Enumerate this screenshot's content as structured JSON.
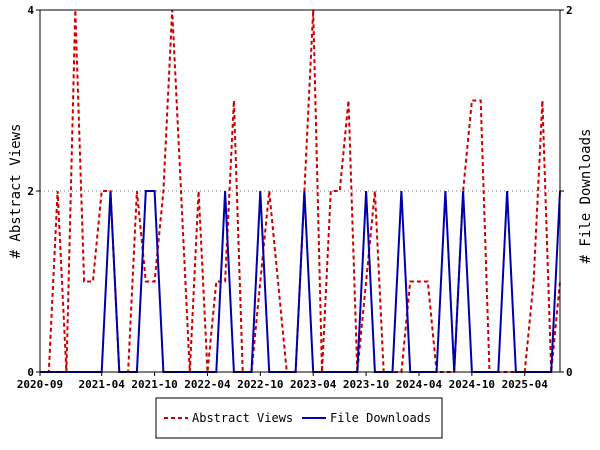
{
  "chart_data": {
    "type": "line",
    "x_tick_labels": [
      "2020-09",
      "2021-04",
      "2021-10",
      "2022-04",
      "2022-10",
      "2023-04",
      "2023-10",
      "2024-04",
      "2024-10",
      "2025-04"
    ],
    "y_left": {
      "label": "# Abstract Views",
      "ticks": [
        "0",
        "2",
        "4"
      ],
      "lim": [
        0,
        4
      ]
    },
    "y_right": {
      "label": "# File Downloads",
      "ticks": [
        "0",
        "1",
        "2"
      ],
      "lim": [
        0,
        2
      ]
    },
    "legend_placement": "bottom-center",
    "series": [
      {
        "name": "Abstract Views",
        "axis": "left",
        "color": "#cc0000",
        "style": "dashed",
        "values": [
          0,
          0,
          2,
          0,
          4,
          1,
          1,
          2,
          2,
          0,
          0,
          2,
          1,
          1,
          2,
          4,
          2,
          0,
          2,
          0,
          1,
          1,
          3,
          0,
          0,
          1,
          2,
          1,
          0,
          0,
          2,
          4,
          0,
          2,
          2,
          3,
          0,
          1,
          2,
          0,
          0,
          0,
          1,
          1,
          1,
          0,
          0,
          0,
          2,
          3,
          3,
          0,
          0,
          0,
          0,
          0,
          1,
          3,
          0,
          1
        ]
      },
      {
        "name": "File Downloads",
        "axis": "right",
        "color": "#0000aa",
        "style": "solid",
        "values": [
          0,
          0,
          0,
          0,
          0,
          0,
          0,
          0,
          1,
          0,
          0,
          0,
          1,
          1,
          0,
          0,
          0,
          0,
          0,
          0,
          0,
          1,
          0,
          0,
          0,
          1,
          0,
          0,
          0,
          0,
          1,
          0,
          0,
          0,
          0,
          0,
          0,
          1,
          0,
          0,
          0,
          1,
          0,
          0,
          0,
          0,
          1,
          0,
          1,
          0,
          0,
          0,
          0,
          1,
          0,
          0,
          0,
          0,
          0,
          1
        ]
      }
    ]
  }
}
